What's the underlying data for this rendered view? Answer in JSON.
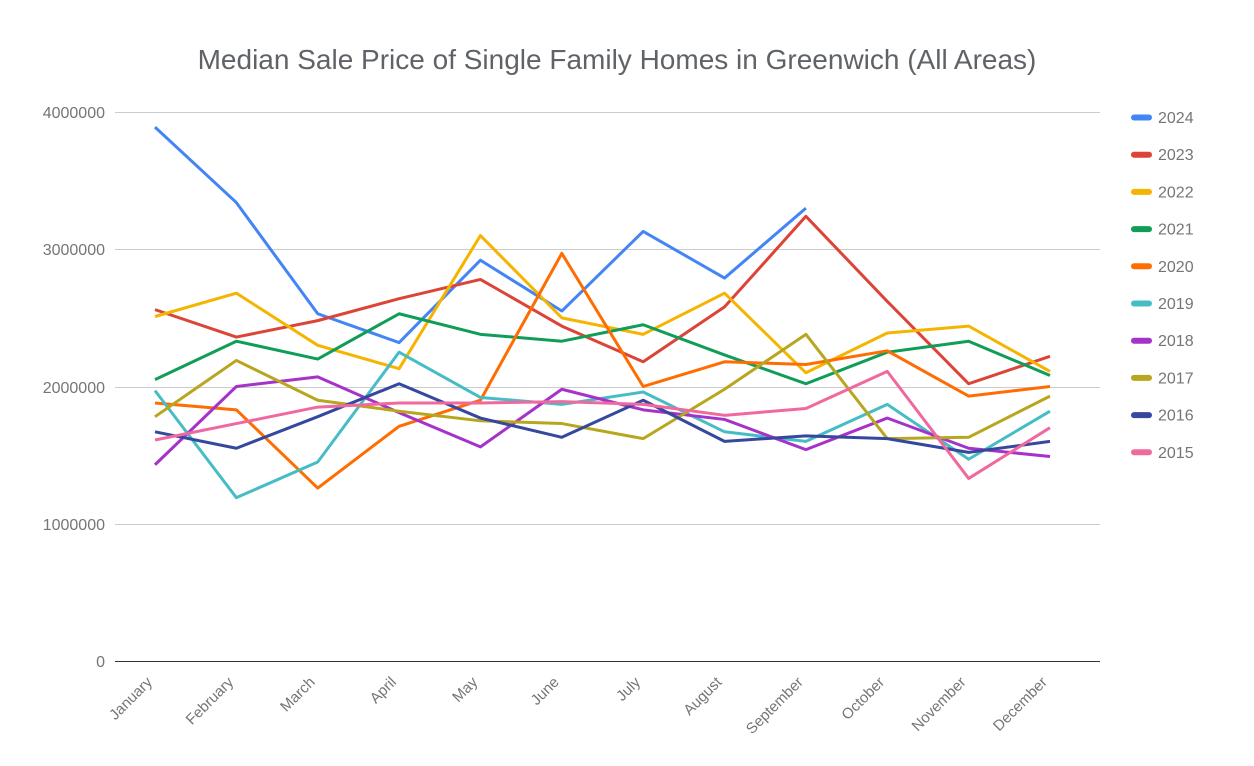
{
  "chart_data": {
    "type": "line",
    "title": "Median Sale Price of Single Family Homes in Greenwich (All Areas)",
    "categories": [
      "January",
      "February",
      "March",
      "April",
      "May",
      "June",
      "July",
      "August",
      "September",
      "October",
      "November",
      "December"
    ],
    "xlabel": "",
    "ylabel": "",
    "ylim": [
      0,
      4000000
    ],
    "y_ticks": [
      {
        "value": 0,
        "label": "0"
      },
      {
        "value": 1000000,
        "label": "1000000"
      },
      {
        "value": 2000000,
        "label": "2000000"
      },
      {
        "value": 3000000,
        "label": "3000000"
      },
      {
        "value": 4000000,
        "label": "4000000"
      }
    ],
    "grid": true,
    "legend_position": "right",
    "series": [
      {
        "name": "2024",
        "color": "#4285F4",
        "values": [
          3890000,
          3340000,
          2530000,
          2320000,
          2920000,
          2550000,
          3130000,
          2790000,
          3300000,
          null,
          null,
          null
        ]
      },
      {
        "name": "2023",
        "color": "#DB4437",
        "values": [
          2560000,
          2360000,
          2480000,
          2640000,
          2780000,
          2440000,
          2180000,
          2580000,
          3240000,
          2620000,
          2020000,
          2220000
        ]
      },
      {
        "name": "2022",
        "color": "#F5B400",
        "values": [
          2510000,
          2680000,
          2300000,
          2130000,
          3100000,
          2500000,
          2380000,
          2680000,
          2100000,
          2390000,
          2440000,
          2110000
        ]
      },
      {
        "name": "2021",
        "color": "#109D58",
        "values": [
          2050000,
          2330000,
          2200000,
          2530000,
          2380000,
          2330000,
          2450000,
          2230000,
          2020000,
          2250000,
          2330000,
          2080000
        ]
      },
      {
        "name": "2020",
        "color": "#FF6D01",
        "values": [
          1880000,
          1830000,
          1260000,
          1710000,
          1900000,
          2970000,
          2000000,
          2180000,
          2160000,
          2260000,
          1930000,
          2000000
        ]
      },
      {
        "name": "2019",
        "color": "#46BDC6",
        "values": [
          1970000,
          1190000,
          1450000,
          2250000,
          1920000,
          1870000,
          1960000,
          1670000,
          1600000,
          1870000,
          1470000,
          1820000
        ]
      },
      {
        "name": "2018",
        "color": "#A633C9",
        "values": [
          1430000,
          2000000,
          2070000,
          1810000,
          1560000,
          1980000,
          1830000,
          1760000,
          1540000,
          1770000,
          1550000,
          1490000
        ]
      },
      {
        "name": "2017",
        "color": "#B8A61F",
        "values": [
          1780000,
          2190000,
          1900000,
          1820000,
          1750000,
          1730000,
          1620000,
          1980000,
          2380000,
          1620000,
          1630000,
          1930000
        ]
      },
      {
        "name": "2016",
        "color": "#35489E",
        "values": [
          1670000,
          1550000,
          1780000,
          2020000,
          1770000,
          1630000,
          1900000,
          1600000,
          1640000,
          1620000,
          1520000,
          1600000
        ]
      },
      {
        "name": "2015",
        "color": "#F0699E",
        "values": [
          1610000,
          1730000,
          1850000,
          1880000,
          1880000,
          1890000,
          1870000,
          1790000,
          1840000,
          2110000,
          1330000,
          1700000
        ]
      }
    ]
  }
}
